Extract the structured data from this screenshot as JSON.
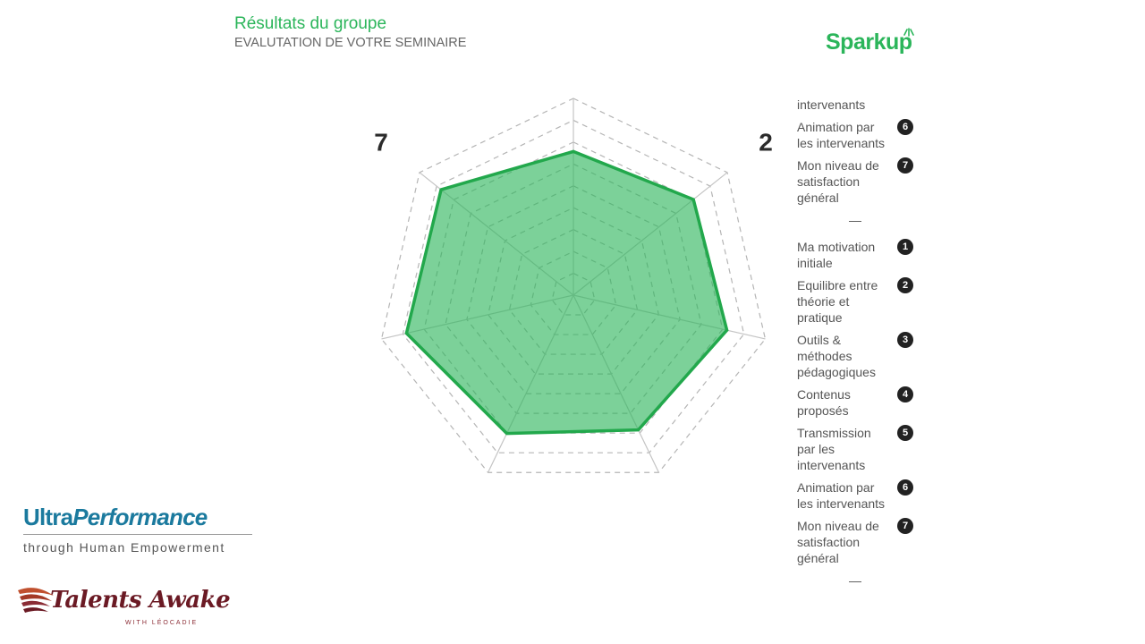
{
  "header": {
    "title": "Résultats du groupe",
    "subtitle": "EVALUTATION DE VOTRE SEMINAIRE"
  },
  "brand": {
    "name": "Sparkup",
    "color": "#2bb55a"
  },
  "chart_data": {
    "type": "radar",
    "axes": [
      "1",
      "2",
      "3",
      "4",
      "5",
      "6",
      "7"
    ],
    "rings": 9,
    "series": [
      {
        "values": [
          0.73,
          0.78,
          0.8,
          0.76,
          0.78,
          0.87,
          0.86
        ]
      }
    ],
    "fill_color": "#2bb55a",
    "fill_opacity": 0.62,
    "stroke_color": "#22a84c",
    "grid": true
  },
  "legend": {
    "top": [
      {
        "label": "intervenants",
        "num": ""
      },
      {
        "label": "Animation par les intervenants",
        "num": "6"
      },
      {
        "label": "Mon niveau de satisfaction général",
        "num": "7"
      }
    ],
    "separator": "—",
    "items": [
      {
        "label": "Ma motivation initiale",
        "num": "1"
      },
      {
        "label": "Equilibre entre théorie et pratique",
        "num": "2"
      },
      {
        "label": "Outils & méthodes pédagogiques",
        "num": "3"
      },
      {
        "label": "Contenus proposés",
        "num": "4"
      },
      {
        "label": "Transmission par les intervenants",
        "num": "5"
      },
      {
        "label": "Animation par les intervenants",
        "num": "6"
      },
      {
        "label": "Mon niveau de satisfaction général",
        "num": "7"
      }
    ],
    "separator_bottom": "—"
  },
  "partners": {
    "ultra_a": "Ultra",
    "ultra_b": "Performance",
    "ultra_tagline": "through Human Empowerment",
    "talents_name": "Talents Awake",
    "talents_tagline": "WITH LÉOCADIE"
  }
}
